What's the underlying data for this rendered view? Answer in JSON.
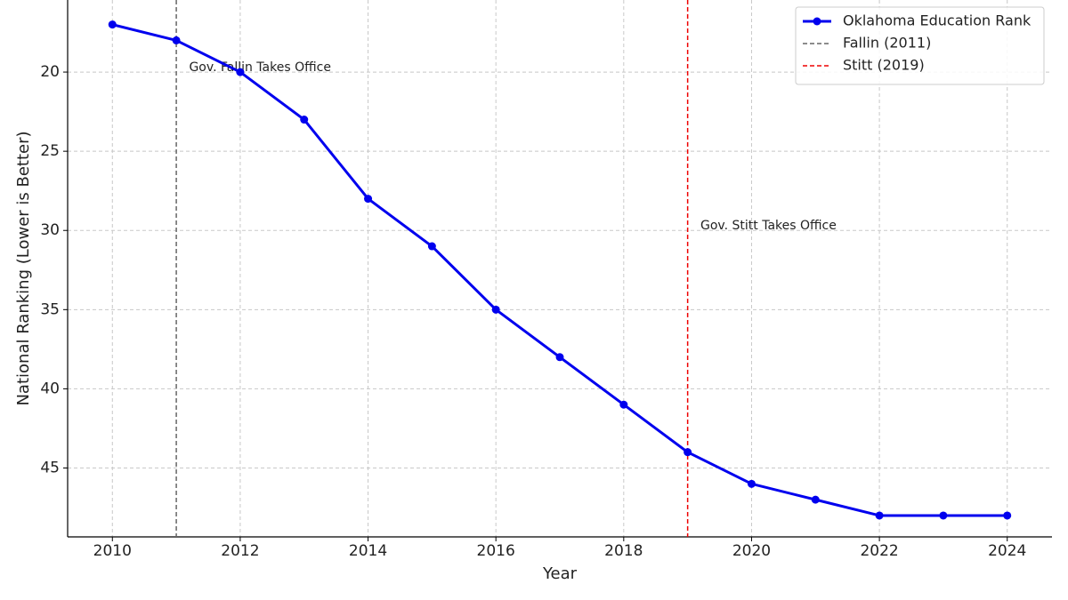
{
  "chart_data": {
    "type": "line",
    "x_label": "Year",
    "y_label": "National Ranking (Lower is Better)",
    "x": [
      2010,
      2011,
      2012,
      2013,
      2014,
      2015,
      2016,
      2017,
      2018,
      2019,
      2020,
      2021,
      2022,
      2023,
      2024
    ],
    "series": [
      {
        "name": "Oklahoma Education Rank",
        "color": "#0000ee",
        "values": [
          17,
          18,
          20,
          23,
          28,
          31,
          35,
          38,
          41,
          44,
          46,
          47,
          48,
          48,
          48
        ]
      }
    ],
    "vlines": [
      {
        "name": "Fallin (2011)",
        "x": 2011,
        "color": "#666666"
      },
      {
        "name": "Stitt (2019)",
        "x": 2019,
        "color": "#ee0000"
      }
    ],
    "annotations": [
      {
        "text": "Gov. Fallin Takes Office",
        "x": 2011.2,
        "y": 20,
        "color": "#777777"
      },
      {
        "text": "Gov. Stitt Takes Office",
        "x": 2019.2,
        "y": 30,
        "color": "#ee0000"
      }
    ],
    "xlim": [
      2009.3,
      2024.7
    ],
    "xticks": [
      2010,
      2012,
      2014,
      2016,
      2018,
      2020,
      2022,
      2024
    ],
    "ylim": [
      49.35,
      15.45
    ],
    "yticks": [
      20,
      25,
      30,
      35,
      40,
      45
    ],
    "grid": true,
    "legend": "upper right"
  }
}
